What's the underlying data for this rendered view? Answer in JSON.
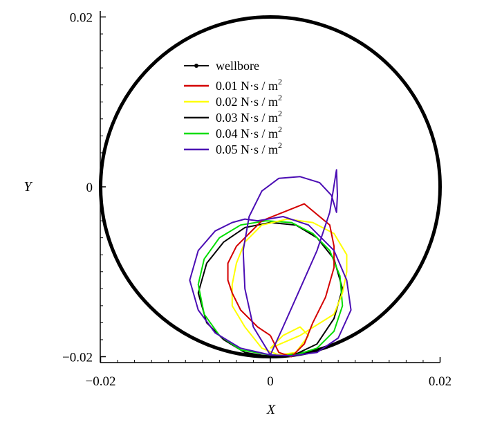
{
  "chart_data": {
    "type": "line",
    "xlabel": "X",
    "ylabel": "Y",
    "xlim": [
      -0.02,
      0.02
    ],
    "ylim": [
      -0.02,
      0.02
    ],
    "x_ticks": [
      "-0.02",
      "0",
      "0.02"
    ],
    "y_ticks": [
      "-0.02",
      "0",
      "0.02"
    ],
    "legend_position": "top-center",
    "wellbore": {
      "name": "wellbore",
      "center": [
        0,
        0
      ],
      "radius": 0.02,
      "color": "#000000"
    },
    "series": [
      {
        "name_value": "0.01",
        "name_unit": "N·s / m",
        "name_exp": "2",
        "color": "#d40000",
        "x": [
          0.0,
          -0.0015,
          -0.0035,
          -0.0045,
          -0.005,
          -0.005,
          -0.004,
          -0.0025,
          -0.001,
          0.0015,
          0.004,
          0.007,
          0.0075,
          0.0075,
          0.0065,
          0.005,
          0.004,
          0.003,
          0.0025,
          0.001,
          0.0
        ],
        "y": [
          -0.0175,
          -0.0165,
          -0.0145,
          -0.0125,
          -0.011,
          -0.009,
          -0.007,
          -0.0055,
          -0.004,
          -0.003,
          -0.002,
          -0.0045,
          -0.007,
          -0.0095,
          -0.013,
          -0.016,
          -0.0185,
          -0.0195,
          -0.02,
          -0.0195,
          -0.0175
        ]
      },
      {
        "name_value": "0.02",
        "name_unit": "N·s / m",
        "name_exp": "2",
        "color": "#ffff00",
        "x": [
          0.0,
          0.0035,
          0.0075,
          0.0085,
          0.009,
          0.009,
          0.0075,
          0.005,
          0.002,
          -0.001,
          -0.003,
          -0.004,
          -0.0045,
          -0.0045,
          -0.003,
          -0.001,
          0.001,
          0.003,
          0.0045,
          0.0035,
          0.0015,
          0.0
        ],
        "y": [
          -0.019,
          -0.0175,
          -0.015,
          -0.0125,
          -0.01,
          -0.008,
          -0.0055,
          -0.0042,
          -0.0038,
          -0.0045,
          -0.0065,
          -0.009,
          -0.0115,
          -0.014,
          -0.0165,
          -0.019,
          -0.0198,
          -0.0195,
          -0.0175,
          -0.0165,
          -0.0175,
          -0.019
        ]
      },
      {
        "name_value": "0.03",
        "name_unit": "N·s / m",
        "name_exp": "2",
        "color": "#000000",
        "x": [
          0.0,
          -0.003,
          -0.0055,
          -0.0075,
          -0.0085,
          -0.0075,
          -0.0055,
          -0.003,
          0.0,
          0.003,
          0.0055,
          0.0075,
          0.0085,
          0.0075,
          0.0055,
          0.003,
          0.0
        ],
        "y": [
          -0.02,
          -0.0195,
          -0.018,
          -0.016,
          -0.0125,
          -0.009,
          -0.0065,
          -0.0048,
          -0.0042,
          -0.0045,
          -0.006,
          -0.0085,
          -0.012,
          -0.0155,
          -0.0185,
          -0.0197,
          -0.02
        ]
      },
      {
        "name_value": "0.04",
        "name_unit": "N·s / m",
        "name_exp": "2",
        "color": "#00dd00",
        "x": [
          0.0,
          -0.0035,
          -0.006,
          -0.0078,
          -0.0085,
          -0.0078,
          -0.006,
          -0.0035,
          -0.0005,
          0.0025,
          0.005,
          0.007,
          0.0082,
          0.0085,
          0.0075,
          0.0055,
          0.003,
          0.0
        ],
        "y": [
          -0.0198,
          -0.0192,
          -0.0175,
          -0.015,
          -0.0115,
          -0.0085,
          -0.006,
          -0.0045,
          -0.004,
          -0.0042,
          -0.0055,
          -0.0075,
          -0.0105,
          -0.014,
          -0.017,
          -0.019,
          -0.0198,
          -0.0198
        ]
      },
      {
        "name_value": "0.05",
        "name_unit": "N·s / m",
        "name_exp": "2",
        "color": "#4b0db4",
        "x": [
          0.0,
          -0.0035,
          -0.0065,
          -0.0085,
          -0.0095,
          -0.0085,
          -0.0065,
          -0.0045,
          -0.003,
          -0.0015,
          0.0015,
          0.0045,
          0.0075,
          0.009,
          0.0095,
          0.008,
          0.0055,
          0.0025,
          0.0,
          -0.002,
          -0.003,
          -0.0032,
          -0.0025,
          -0.001,
          0.001,
          0.0035,
          0.0058,
          0.0072,
          0.0078,
          0.0079,
          0.0078,
          0.007,
          0.0055,
          0.0035,
          0.0015,
          0.0
        ],
        "y": [
          -0.0198,
          -0.019,
          -0.0172,
          -0.0145,
          -0.011,
          -0.0075,
          -0.0052,
          -0.0042,
          -0.0038,
          -0.004,
          -0.0035,
          -0.0045,
          -0.0075,
          -0.011,
          -0.0145,
          -0.0178,
          -0.0195,
          -0.0199,
          -0.0198,
          -0.0165,
          -0.012,
          -0.0075,
          -0.0035,
          -0.0005,
          0.001,
          0.0012,
          0.0005,
          -0.001,
          -0.003,
          -0.001,
          0.002,
          -0.003,
          -0.0075,
          -0.012,
          -0.0165,
          -0.0198
        ]
      }
    ]
  }
}
